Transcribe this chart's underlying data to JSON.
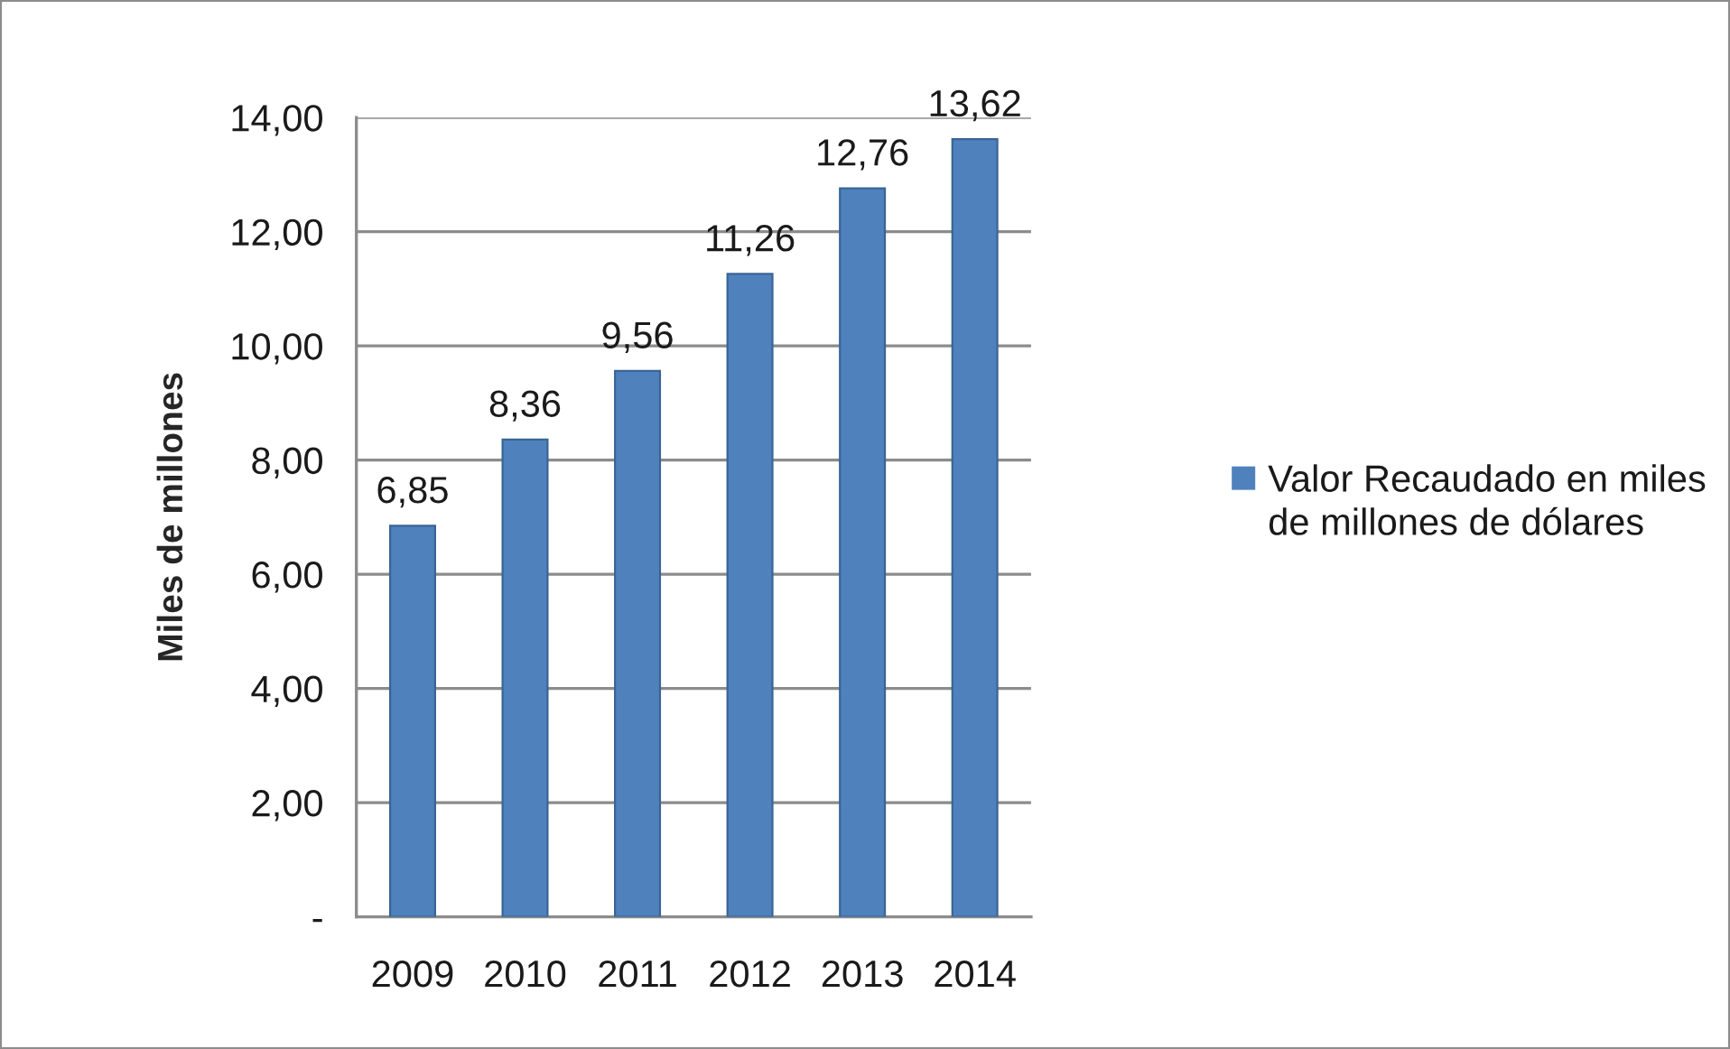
{
  "chart_data": {
    "type": "bar",
    "categories": [
      "2009",
      "2010",
      "2011",
      "2012",
      "2013",
      "2014"
    ],
    "series": [
      {
        "name": "Valor Recaudado en miles de millones de dólares",
        "color": "#4f81bd",
        "values": [
          6.85,
          8.36,
          9.56,
          11.26,
          12.76,
          13.62
        ],
        "value_labels": [
          "6,85",
          "8,36",
          "9,56",
          "11,26",
          "12,76",
          "13,62"
        ]
      }
    ],
    "ylabel": "Miles de millones",
    "ylim": [
      0,
      14
    ],
    "yticks": [
      {
        "value": 0,
        "label": "-"
      },
      {
        "value": 2,
        "label": "2,00"
      },
      {
        "value": 4,
        "label": "4,00"
      },
      {
        "value": 6,
        "label": "6,00"
      },
      {
        "value": 8,
        "label": "8,00"
      },
      {
        "value": 10,
        "label": "10,00"
      },
      {
        "value": 12,
        "label": "12,00"
      },
      {
        "value": 14,
        "label": "14,00"
      }
    ],
    "grid": "y",
    "legend": "right"
  }
}
